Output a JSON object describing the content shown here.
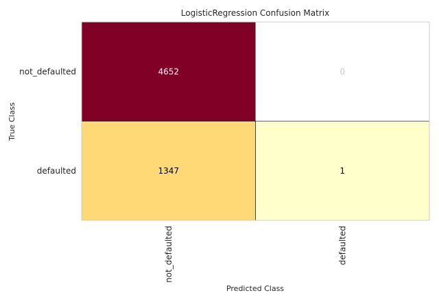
{
  "chart_data": {
    "type": "heatmap",
    "title": "LogisticRegression Confusion Matrix",
    "xlabel": "Predicted Class",
    "ylabel": "True Class",
    "x_categories": [
      "not_defaulted",
      "defaulted"
    ],
    "y_categories": [
      "not_defaulted",
      "defaulted"
    ],
    "values": [
      [
        4652,
        0
      ],
      [
        1347,
        1
      ]
    ],
    "cell_colors": [
      [
        "#800026",
        "#ffffff"
      ],
      [
        "#fed976",
        "#ffffcc"
      ]
    ],
    "cell_text_colors": [
      [
        "#ffffff",
        "#c8c8c8"
      ],
      [
        "#000000",
        "#000000"
      ]
    ],
    "grid": false
  }
}
